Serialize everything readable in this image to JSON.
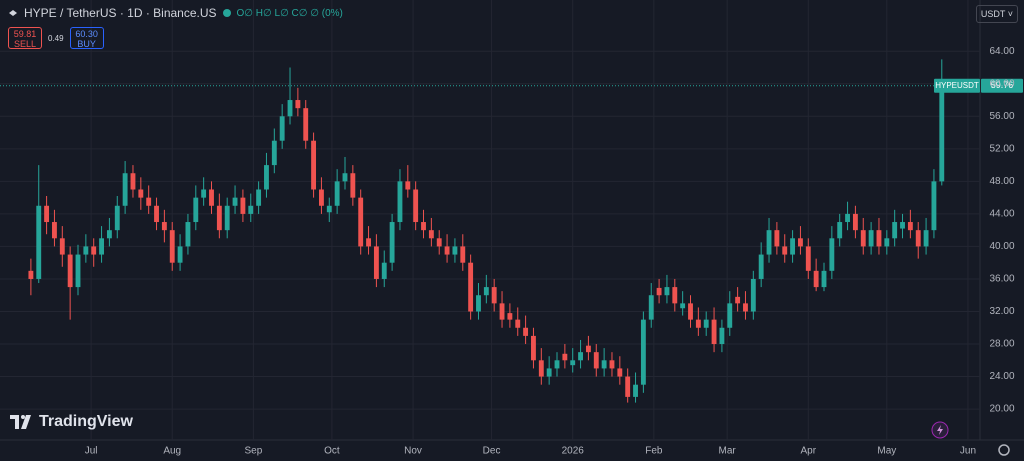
{
  "header": {
    "symbol": "HYPE / TetherUS · 1D · Binance.US",
    "ohlc_text": "O∅ H∅ L∅ C∅ ∅ (0%)"
  },
  "trade": {
    "sell_price": "59.81",
    "sell_label": "SELL",
    "spread": "0.49",
    "buy_price": "60.30",
    "buy_label": "BUY"
  },
  "currency": "USDT",
  "logo": "TradingView",
  "chart_data": {
    "type": "candlestick",
    "symbol_label": "HYPEUSDT",
    "up_color": "#26a69a",
    "down_color": "#ef5350",
    "grid": true,
    "x": [
      2,
      5,
      8,
      11,
      14,
      17,
      20,
      23,
      26,
      29,
      32,
      35,
      38,
      41,
      44,
      47,
      50,
      53,
      56,
      59,
      62,
      65,
      68,
      71,
      74,
      77,
      80,
      83,
      86,
      89,
      92,
      95,
      98,
      101,
      104,
      107,
      110,
      113,
      116,
      119,
      122,
      125,
      128,
      131,
      134,
      137,
      140,
      143,
      146,
      149,
      152,
      155,
      158,
      161,
      164,
      167,
      170,
      173,
      176,
      179,
      182,
      185,
      188,
      191,
      194,
      197,
      200,
      203,
      206,
      209,
      212,
      215,
      218,
      221,
      224,
      227,
      230,
      233,
      236,
      239,
      242,
      245,
      248,
      251,
      254,
      257,
      260,
      263,
      266,
      269,
      272,
      275,
      278,
      281,
      284,
      287,
      290,
      293,
      296,
      299,
      302,
      305,
      308,
      311,
      314,
      317,
      320,
      323,
      326,
      329,
      332,
      335,
      338,
      341,
      344,
      347,
      350
    ],
    "open": [
      37,
      36,
      45,
      43,
      41,
      39,
      35,
      39,
      40,
      39,
      41,
      42,
      45,
      49,
      47,
      46,
      45,
      43,
      42,
      38,
      40,
      43,
      46,
      47,
      45,
      42,
      45,
      46,
      44,
      45,
      47,
      50,
      53,
      56,
      58,
      57,
      53,
      47,
      44.2,
      45,
      48,
      49,
      46,
      41,
      40,
      36,
      38,
      43,
      48,
      47,
      43,
      42,
      41,
      40,
      39,
      40,
      38,
      32,
      34,
      35,
      33,
      31.8,
      31,
      30,
      29,
      26,
      24,
      25,
      26.8,
      25.4,
      26,
      27.8,
      27,
      25,
      26,
      25,
      24,
      21.5,
      23,
      31,
      34.9,
      34,
      35,
      32.4,
      33,
      31,
      30,
      31,
      28,
      30,
      33.8,
      33,
      32,
      36,
      39,
      42,
      40,
      39,
      41,
      40,
      37,
      35,
      37,
      41,
      43,
      44,
      42,
      40,
      42,
      40,
      41,
      42.2,
      43,
      42,
      40,
      42,
      48
    ],
    "high": [
      38.5,
      50,
      46.2,
      44.5,
      42.5,
      40,
      40.2,
      41.5,
      41,
      42.5,
      43.5,
      46.2,
      50.5,
      50,
      48.5,
      47.5,
      46,
      44.5,
      43,
      41.5,
      44,
      47.5,
      48.5,
      48,
      46.5,
      46,
      47.5,
      47,
      46.5,
      48,
      51.5,
      54.5,
      57.5,
      62,
      59.5,
      58,
      54,
      48.5,
      46,
      49.5,
      51,
      50,
      47,
      42.5,
      41.5,
      39.5,
      44,
      49.5,
      50,
      48,
      44.5,
      43.5,
      42,
      41.5,
      41,
      41.5,
      39,
      35.5,
      36.5,
      36,
      34.5,
      33,
      32.5,
      31.5,
      30,
      27.5,
      26.5,
      27,
      28,
      27.5,
      28.5,
      29,
      28,
      27.5,
      27,
      26.5,
      25,
      24.5,
      32,
      35.5,
      36,
      36.5,
      36,
      34.5,
      34,
      32.5,
      32,
      32.5,
      31,
      34.5,
      35,
      34.5,
      37,
      40.5,
      43.5,
      43,
      41.5,
      42,
      42.5,
      41,
      38.5,
      38,
      42.5,
      44,
      45.5,
      45,
      43.5,
      43,
      43.5,
      42,
      44.5,
      44,
      44.5,
      43,
      43.5,
      49.5,
      63
    ],
    "low": [
      34,
      35.5,
      41.5,
      40,
      37.5,
      31,
      34,
      38,
      37.5,
      38,
      40,
      41,
      44,
      46,
      44.5,
      44,
      42,
      40.5,
      37,
      37,
      39,
      42,
      45,
      44,
      41,
      41,
      44,
      43,
      43,
      44,
      46,
      49,
      52,
      55,
      56,
      52,
      46,
      44,
      43,
      44,
      47,
      45,
      39,
      39,
      35,
      35,
      37,
      42,
      46,
      42,
      41,
      40,
      39,
      38,
      38,
      37,
      31,
      31,
      33,
      32,
      30,
      30,
      29,
      28,
      25,
      23,
      23,
      24,
      25,
      24.5,
      25,
      26,
      24,
      24,
      24,
      23,
      20.8,
      20.8,
      22,
      30,
      33,
      33,
      32,
      31.5,
      30,
      29,
      29,
      27,
      27,
      29,
      32,
      31,
      31,
      35,
      38,
      39,
      38,
      38,
      39,
      36,
      34.5,
      34.5,
      36,
      40,
      42,
      41,
      39,
      39,
      39,
      39,
      40,
      41,
      41,
      38.5,
      39,
      41,
      47.5
    ],
    "close": [
      36,
      45,
      43,
      41,
      39,
      35,
      39,
      40,
      39,
      41,
      42,
      45,
      49,
      47,
      46,
      45,
      43,
      42,
      38,
      40,
      43,
      46,
      47,
      45,
      42,
      45,
      46,
      44,
      45,
      47,
      50,
      53,
      56,
      58,
      57,
      53,
      47,
      45,
      45,
      48,
      49,
      46,
      40,
      40,
      36,
      38,
      43,
      48,
      47,
      43,
      42,
      41,
      40,
      39,
      40,
      38,
      32,
      34,
      35,
      33,
      31,
      31,
      30,
      29,
      26,
      24,
      25,
      26,
      26,
      26,
      27,
      27,
      25,
      26,
      25,
      24,
      21.5,
      23,
      31,
      34,
      34,
      35,
      33,
      33,
      31,
      30,
      31,
      28,
      30,
      33,
      33,
      32,
      36,
      39,
      42,
      40,
      39,
      41,
      40,
      37,
      35,
      37,
      41,
      43,
      44,
      42,
      40,
      42,
      40,
      41,
      43,
      43,
      42,
      40,
      42,
      48,
      59.76
    ],
    "xlim": [
      -9.8,
      364.6
    ],
    "ylim": [
      16.2,
      70.3
    ],
    "xticks": [
      {
        "value": 25,
        "label": "Jul"
      },
      {
        "value": 56,
        "label": "Aug"
      },
      {
        "value": 87,
        "label": "Sep"
      },
      {
        "value": 117,
        "label": "Oct"
      },
      {
        "value": 148,
        "label": "Nov"
      },
      {
        "value": 178,
        "label": "Dec"
      },
      {
        "value": 209,
        "label": "2026"
      },
      {
        "value": 240,
        "label": "Feb"
      },
      {
        "value": 268,
        "label": "Mar"
      },
      {
        "value": 299,
        "label": "Apr"
      },
      {
        "value": 329,
        "label": "May"
      },
      {
        "value": 360,
        "label": "Jun"
      }
    ],
    "yticks": [
      {
        "value": 20,
        "label": "20.00"
      },
      {
        "value": 24,
        "label": "24.00"
      },
      {
        "value": 28,
        "label": "28.00"
      },
      {
        "value": 32,
        "label": "32.00"
      },
      {
        "value": 36,
        "label": "36.00"
      },
      {
        "value": 40,
        "label": "40.00"
      },
      {
        "value": 44,
        "label": "44.00"
      },
      {
        "value": 48,
        "label": "48.00"
      },
      {
        "value": 52,
        "label": "52.00"
      },
      {
        "value": 56,
        "label": "56.00"
      },
      {
        "value": 60,
        "label": "60.00"
      },
      {
        "value": 64,
        "label": "64.00"
      }
    ]
  }
}
